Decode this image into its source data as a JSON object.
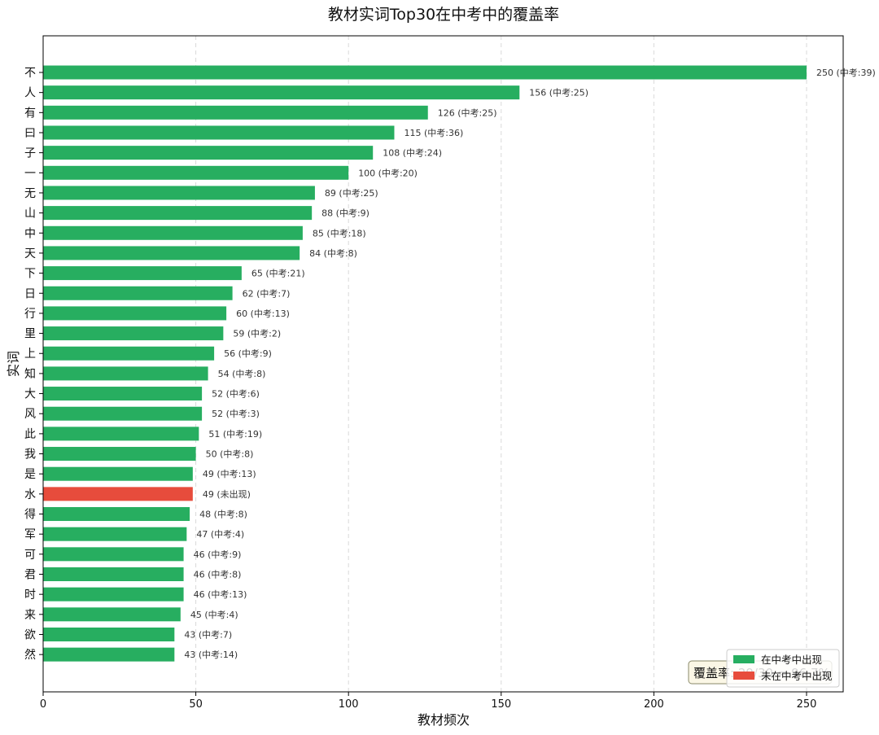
{
  "chart_data": {
    "type": "bar",
    "orientation": "horizontal",
    "title": "教材实词Top30在中考中的覆盖率",
    "xlabel": "教材频次",
    "ylabel": "实词",
    "xlim": [
      0,
      262
    ],
    "xticks": [
      0,
      50,
      100,
      150,
      200,
      250
    ],
    "grid": "x-dashed",
    "categories": [
      "不",
      "人",
      "有",
      "曰",
      "子",
      "一",
      "无",
      "山",
      "中",
      "天",
      "下",
      "日",
      "行",
      "里",
      "上",
      "知",
      "大",
      "风",
      "此",
      "我",
      "是",
      "水",
      "得",
      "军",
      "可",
      "君",
      "时",
      "来",
      "欲",
      "然"
    ],
    "values": [
      250,
      156,
      126,
      115,
      108,
      100,
      89,
      88,
      85,
      84,
      65,
      62,
      60,
      59,
      56,
      54,
      52,
      52,
      51,
      50,
      49,
      49,
      48,
      47,
      46,
      46,
      46,
      45,
      43,
      43
    ],
    "labels": [
      "250 (中考:39)",
      "156 (中考:25)",
      "126 (中考:25)",
      "115 (中考:36)",
      "108 (中考:24)",
      "100 (中考:20)",
      "89 (中考:25)",
      "88 (中考:9)",
      "85 (中考:18)",
      "84 (中考:8)",
      "65 (中考:21)",
      "62 (中考:7)",
      "60 (中考:13)",
      "59 (中考:2)",
      "56 (中考:9)",
      "54 (中考:8)",
      "52 (中考:6)",
      "52 (中考:3)",
      "51 (中考:19)",
      "50 (中考:8)",
      "49 (中考:13)",
      "49 (未出现)",
      "48 (中考:8)",
      "47 (中考:4)",
      "46 (中考:9)",
      "46 (中考:8)",
      "46 (中考:13)",
      "45 (中考:4)",
      "43 (中考:7)",
      "43 (中考:14)"
    ],
    "in_exam": [
      true,
      true,
      true,
      true,
      true,
      true,
      true,
      true,
      true,
      true,
      true,
      true,
      true,
      true,
      true,
      true,
      true,
      true,
      true,
      true,
      true,
      false,
      true,
      true,
      true,
      true,
      true,
      true,
      true,
      true
    ],
    "colors": {
      "in_exam": "#27ae60",
      "not_in_exam": "#e74c3c"
    },
    "legend": {
      "placement": "lower-right",
      "entries": [
        {
          "name": "在中考中出现",
          "color": "#27ae60"
        },
        {
          "name": "未在中考中出现",
          "color": "#e74c3c"
        }
      ]
    },
    "coverage_annotation": "覆盖率: 29/30 = 96.7%"
  }
}
